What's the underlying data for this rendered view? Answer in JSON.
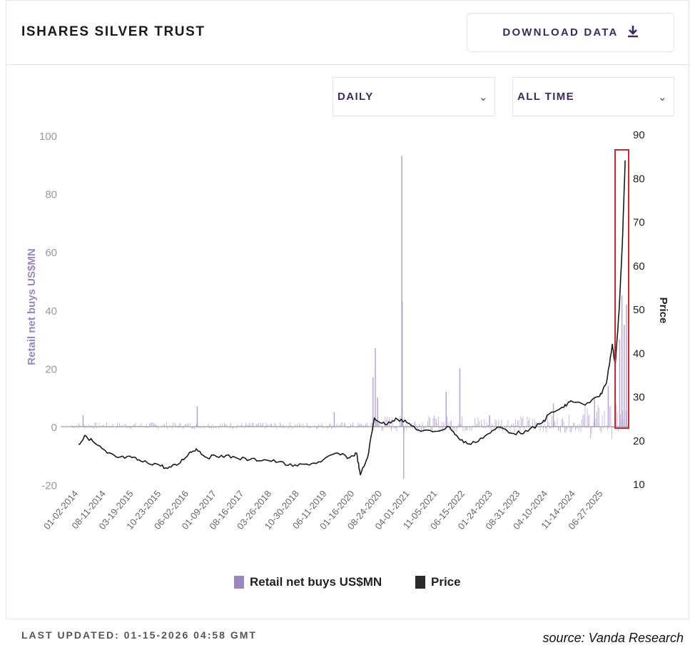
{
  "header": {
    "title": "ISHARES SILVER TRUST",
    "download_label": "DOWNLOAD DATA",
    "download_icon": "download-icon"
  },
  "controls": {
    "frequency": "DAILY",
    "range": "ALL TIME"
  },
  "footer": {
    "last_updated": "LAST UPDATED: 01-15-2026 04:58 GMT",
    "source": "source: Vanda Research"
  },
  "colors": {
    "bars": "#9b86c0",
    "price": "#1a1a1a",
    "highlight": "#d0262d",
    "accent": "#3b2a5c"
  },
  "chart_data": {
    "type": "bar+line",
    "ylabel": "Retail net buys US$MN",
    "y2label": "Price",
    "ylim": [
      -20,
      100
    ],
    "y2lim": [
      10,
      90
    ],
    "yticks": [
      "100",
      "80",
      "60",
      "40",
      "20",
      "0",
      "-20"
    ],
    "y2ticks": [
      "90",
      "80",
      "70",
      "60",
      "50",
      "40",
      "30",
      "20",
      "10"
    ],
    "xticks": [
      "01-02-2014",
      "08-11-2014",
      "03-19-2015",
      "10-23-2015",
      "06-02-2016",
      "01-09-2017",
      "08-16-2017",
      "03-26-2018",
      "10-30-2018",
      "06-11-2019",
      "01-16-2020",
      "08-24-2020",
      "04-01-2021",
      "11-05-2021",
      "06-15-2022",
      "01-24-2023",
      "08-31-2023",
      "04-10-2024",
      "11-14-2024",
      "06-27-2025"
    ],
    "xrange_years": [
      2013.6,
      2026.05
    ],
    "legend": [
      {
        "label": "Retail net buys US$MN"
      },
      {
        "label": "Price"
      }
    ],
    "legend_position": "bottom",
    "price": [
      [
        2014.0,
        19
      ],
      [
        2014.16,
        21
      ],
      [
        2014.39,
        19
      ],
      [
        2014.63,
        17
      ],
      [
        2014.86,
        16
      ],
      [
        2015.17,
        16
      ],
      [
        2015.41,
        15
      ],
      [
        2015.72,
        14.5
      ],
      [
        2015.95,
        13.5
      ],
      [
        2016.19,
        14.5
      ],
      [
        2016.42,
        17
      ],
      [
        2016.58,
        18
      ],
      [
        2016.81,
        16
      ],
      [
        2017.13,
        16.5
      ],
      [
        2017.44,
        16
      ],
      [
        2017.75,
        15.5
      ],
      [
        2018.06,
        15.5
      ],
      [
        2018.38,
        15
      ],
      [
        2018.69,
        14
      ],
      [
        2019.0,
        14.5
      ],
      [
        2019.31,
        15
      ],
      [
        2019.63,
        17
      ],
      [
        2019.94,
        16
      ],
      [
        2020.09,
        17
      ],
      [
        2020.17,
        12
      ],
      [
        2020.33,
        16
      ],
      [
        2020.48,
        25
      ],
      [
        2020.72,
        23.5
      ],
      [
        2020.95,
        25
      ],
      [
        2021.19,
        24
      ],
      [
        2021.5,
        22
      ],
      [
        2021.81,
        22
      ],
      [
        2022.13,
        23
      ],
      [
        2022.36,
        20
      ],
      [
        2022.59,
        19
      ],
      [
        2022.91,
        21
      ],
      [
        2023.22,
        23
      ],
      [
        2023.53,
        21.5
      ],
      [
        2023.84,
        22
      ],
      [
        2024.16,
        24
      ],
      [
        2024.31,
        26
      ],
      [
        2024.63,
        27.5
      ],
      [
        2024.78,
        29
      ],
      [
        2025.09,
        28
      ],
      [
        2025.41,
        30
      ],
      [
        2025.56,
        33
      ],
      [
        2025.69,
        42
      ],
      [
        2025.75,
        37
      ],
      [
        2025.84,
        50
      ],
      [
        2025.91,
        65
      ],
      [
        2025.97,
        84
      ]
    ],
    "retail_spikes": [
      [
        2014.1,
        4
      ],
      [
        2016.6,
        7
      ],
      [
        2019.6,
        5
      ],
      [
        2020.45,
        17
      ],
      [
        2020.5,
        27
      ],
      [
        2020.55,
        10
      ],
      [
        2021.08,
        93
      ],
      [
        2021.09,
        43
      ],
      [
        2021.12,
        -18
      ],
      [
        2022.05,
        12
      ],
      [
        2022.35,
        20
      ],
      [
        2023.0,
        4
      ],
      [
        2024.4,
        8
      ],
      [
        2025.3,
        10
      ],
      [
        2025.6,
        14
      ],
      [
        2025.75,
        20
      ],
      [
        2025.85,
        30
      ],
      [
        2025.9,
        45
      ],
      [
        2025.95,
        35
      ],
      [
        2026.0,
        42
      ]
    ],
    "annotation": "red box highlighting late-2025 price surge"
  }
}
